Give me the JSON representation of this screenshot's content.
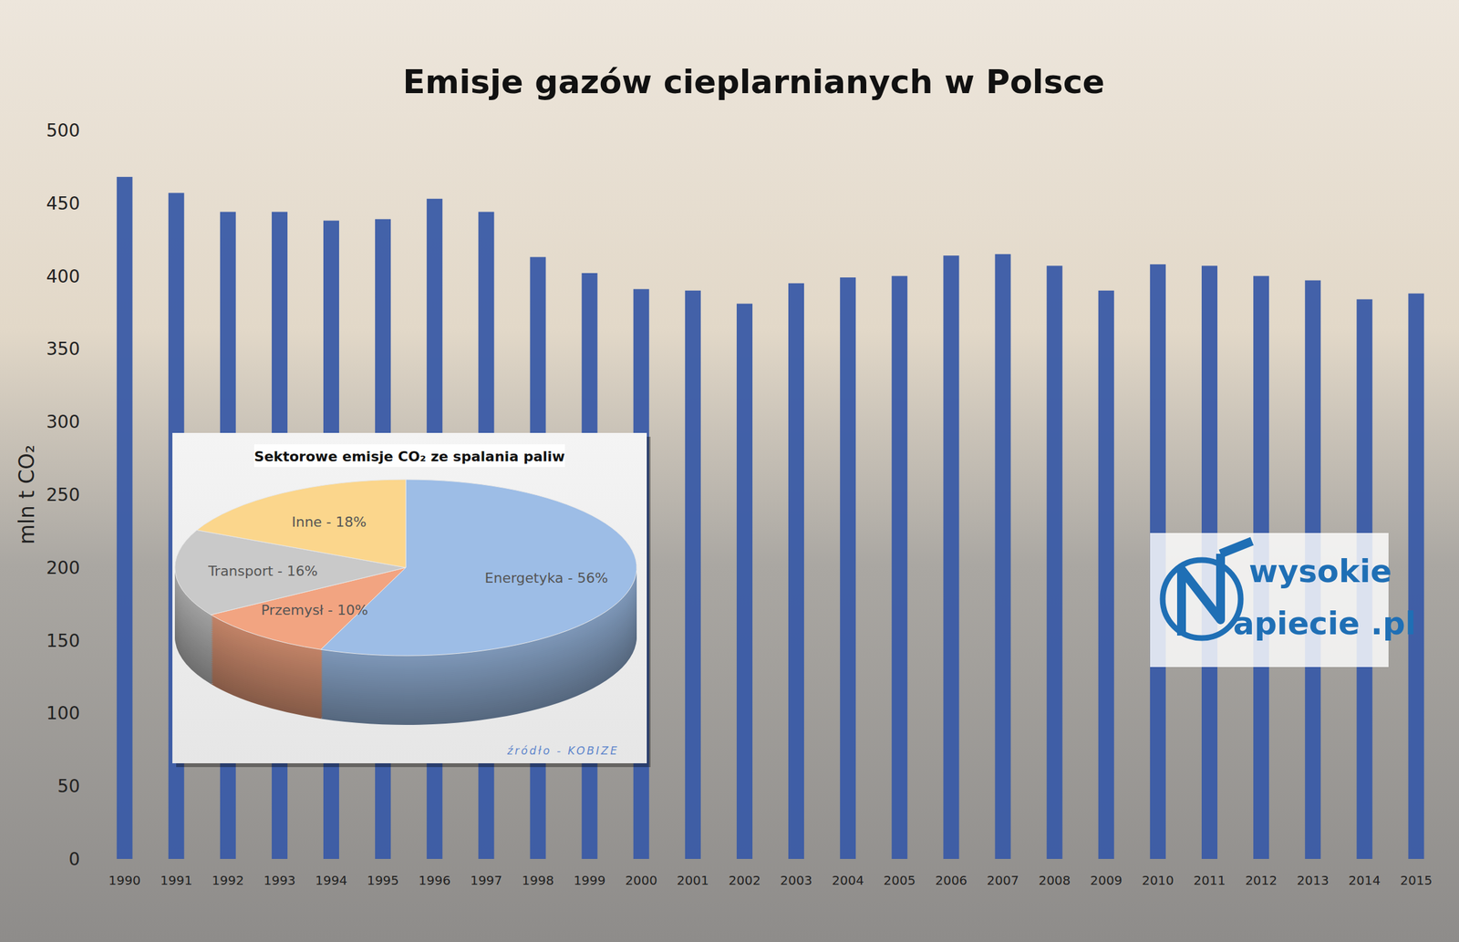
{
  "chart_data": [
    {
      "type": "bar",
      "title": "Emisje gazów cieplarnianych w Polsce",
      "ylabel": "mln t CO₂",
      "categories": [
        "1990",
        "1991",
        "1992",
        "1993",
        "1994",
        "1995",
        "1996",
        "1997",
        "1998",
        "1999",
        "2000",
        "2001",
        "2002",
        "2003",
        "2004",
        "2005",
        "2006",
        "2007",
        "2008",
        "2009",
        "2010",
        "2011",
        "2012",
        "2013",
        "2014",
        "2015"
      ],
      "values": [
        468,
        457,
        444,
        444,
        438,
        439,
        453,
        444,
        413,
        402,
        391,
        390,
        381,
        395,
        399,
        400,
        414,
        415,
        407,
        390,
        408,
        407,
        400,
        397,
        384,
        388
      ],
      "color": "#3a5ba6",
      "ylim": [
        0,
        500
      ],
      "yticks": [
        0,
        50,
        100,
        150,
        200,
        250,
        300,
        350,
        400,
        450,
        500
      ],
      "grid": false,
      "annotations": [
        "wysokie",
        "apiecie .pl"
      ]
    },
    {
      "type": "pie",
      "title": "Sektorowe emisje CO₂ ze spalania paliw",
      "categories": [
        "Energetyka - 56%",
        "Przemysł - 10%",
        "Transport - 16%",
        "Inne - 18%"
      ],
      "values": [
        56,
        10,
        16,
        18
      ],
      "colors": [
        "#9dbde6",
        "#f2a481",
        "#c9c9c9",
        "#fbd68c"
      ],
      "annotations": [
        "źródło - KOBIZE"
      ]
    }
  ]
}
